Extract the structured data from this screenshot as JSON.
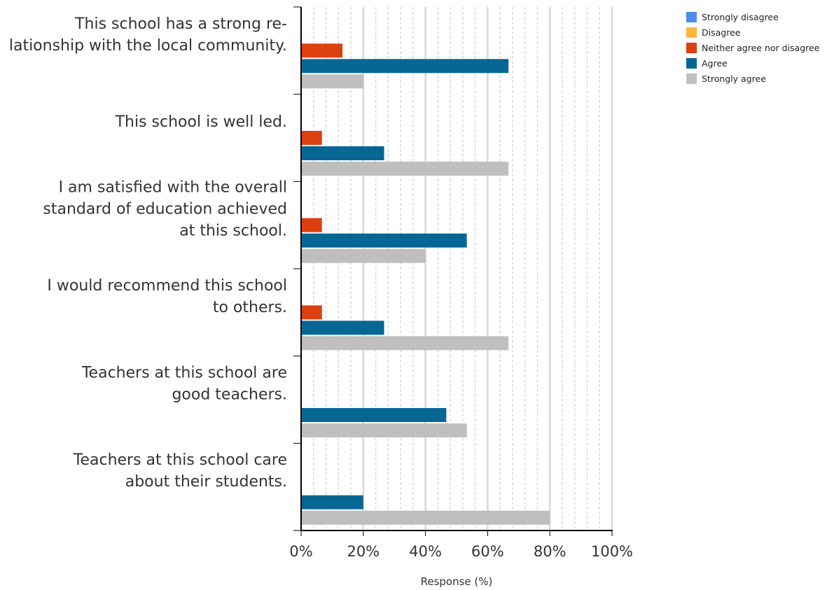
{
  "chart_data": {
    "type": "bar",
    "orientation": "horizontal",
    "title": "",
    "xlabel": "Response (%)",
    "ylabel": "",
    "xlim": [
      0,
      100
    ],
    "x_ticks": [
      "0%",
      "20%",
      "40%",
      "60%",
      "80%",
      "100%"
    ],
    "grid": true,
    "legend_position": "top-right",
    "categories": [
      [
        "This school has a strong re-",
        "lationship with the local community."
      ],
      [
        "This school is well led."
      ],
      [
        "I am satisfied with the overall",
        "standard of education achieved",
        "at this school."
      ],
      [
        "I would recommend this school",
        "to others."
      ],
      [
        "Teachers at this school are",
        "good teachers."
      ],
      [
        "Teachers at this school care",
        "about their students."
      ]
    ],
    "series": [
      {
        "name": "Strongly disagree",
        "color": "#4a8ee8",
        "values": [
          0,
          0,
          0,
          0,
          0,
          0
        ]
      },
      {
        "name": "Disagree",
        "color": "#ffb540",
        "values": [
          0,
          0,
          0,
          0,
          0,
          0
        ]
      },
      {
        "name": "Neither agree nor disagree",
        "color": "#dd3f0e",
        "values": [
          13.3,
          6.7,
          6.7,
          6.7,
          0,
          0
        ]
      },
      {
        "name": "Agree",
        "color": "#066794",
        "values": [
          66.7,
          26.7,
          53.3,
          26.7,
          46.7,
          20
        ]
      },
      {
        "name": "Strongly agree",
        "color": "#bfbfbf",
        "values": [
          20,
          66.7,
          40,
          66.7,
          53.3,
          80
        ]
      }
    ]
  }
}
